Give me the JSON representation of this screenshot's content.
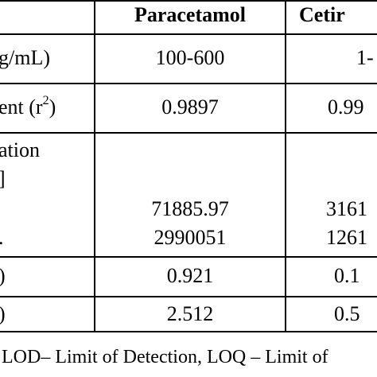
{
  "table": {
    "headers": [
      "Paracetamol",
      "Cetir"
    ],
    "rows": [
      {
        "label": "g/mL)",
        "values": [
          "100-600",
          "1-"
        ]
      },
      {
        "label_prefix": "ent (r",
        "label_sup": "2",
        "label_suffix": ")",
        "values": [
          "0.9897",
          "0.99"
        ]
      },
      {
        "label_line1": "ation",
        "label_line2": "]",
        "label_line3": "",
        "label_line4": ".",
        "values_line1": [
          "71885.97",
          "3161"
        ],
        "values_line2": [
          "2990051",
          "1261"
        ]
      },
      {
        "label": ")",
        "values": [
          "0.921",
          "0.1"
        ]
      },
      {
        "label": ")",
        "values": [
          "2.512",
          "0.5"
        ]
      }
    ]
  },
  "footnote": "LOD– Limit of Detection, LOQ – Limit of"
}
